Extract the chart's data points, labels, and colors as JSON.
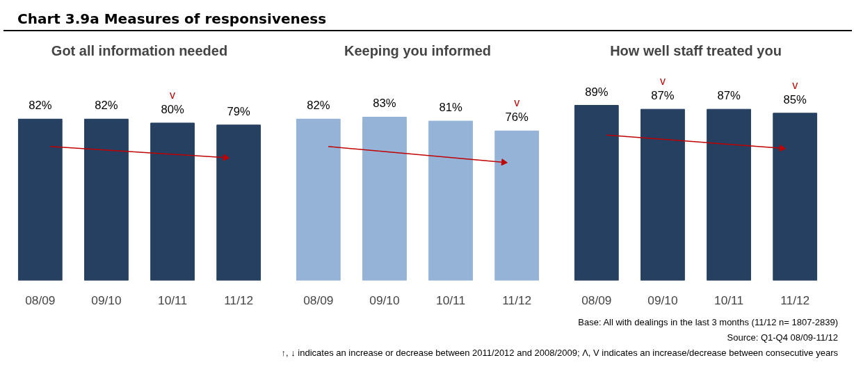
{
  "chart_data": [
    {
      "type": "other",
      "title": "Chart 3.9a  Measures of responsiveness"
    },
    {
      "type": "bar",
      "title": "Got all information needed",
      "categories": [
        "08/09",
        "09/10",
        "10/11",
        "11/12"
      ],
      "values": [
        82,
        82,
        80,
        79
      ],
      "value_labels": [
        "82%",
        "82%",
        "80%",
        "79%"
      ],
      "color": "#264061",
      "annotations": [
        {
          "text": "v",
          "x": "10/11",
          "y": 80
        }
      ]
    },
    {
      "type": "bar",
      "title": "Keeping you informed",
      "categories": [
        "08/09",
        "09/10",
        "10/11",
        "11/12"
      ],
      "values": [
        82,
        83,
        81,
        76
      ],
      "value_labels": [
        "82%",
        "83%",
        "81%",
        "76%"
      ],
      "color": "#95b3d7",
      "annotations": [
        {
          "text": "v",
          "x": "11/12",
          "y": 76
        }
      ]
    },
    {
      "type": "bar",
      "title": "How well staff treated you",
      "categories": [
        "08/09",
        "09/10",
        "10/11",
        "11/12"
      ],
      "values": [
        89,
        87,
        87,
        85
      ],
      "value_labels": [
        "89%",
        "87%",
        "87%",
        "85%"
      ],
      "color": "#264061",
      "annotations": [
        {
          "text": "v",
          "x": "09/10",
          "y": 87
        },
        {
          "text": "v",
          "x": "11/12",
          "y": 85
        }
      ]
    },
    {
      "type": "other",
      "annotations": [
        "Base: All with dealings in the last 3 months (11/12 n= 1807-2839)",
        "Source: Q1-Q4 08/09-11/12",
        "↑, ↓ indicates an increase or decrease between 2011/2012 and 2008/2009; Λ, V indicates an increase/decrease between consecutive years"
      ]
    }
  ]
}
